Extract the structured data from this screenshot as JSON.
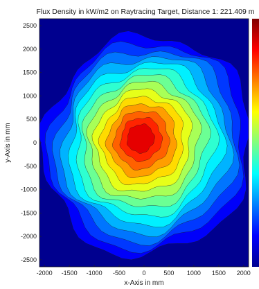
{
  "chart_data": {
    "type": "heatmap",
    "title": "Flux Density in kW/m2 on Raytracing Target, Distance 1: 221.409 m",
    "xlabel": "x-Axis in mm",
    "ylabel": "y-Axis in mm",
    "xlim": [
      -2100,
      2100
    ],
    "ylim": [
      -2650,
      2650
    ],
    "xticks": [
      -2000,
      -1500,
      -1000,
      -500,
      0,
      500,
      1000,
      1500,
      2000
    ],
    "yticks": [
      -2500,
      -2000,
      -1500,
      -1000,
      -500,
      0,
      500,
      1000,
      1500,
      2000,
      2500
    ],
    "peak_center": {
      "x": 0,
      "y": 50
    },
    "contour_levels": [
      0.1,
      0.2,
      0.3,
      0.4,
      0.5,
      0.6,
      0.7,
      0.8,
      0.9,
      1.0,
      1.1,
      1.2
    ],
    "colormap": "jet",
    "colorbar": "right",
    "grid": false
  }
}
